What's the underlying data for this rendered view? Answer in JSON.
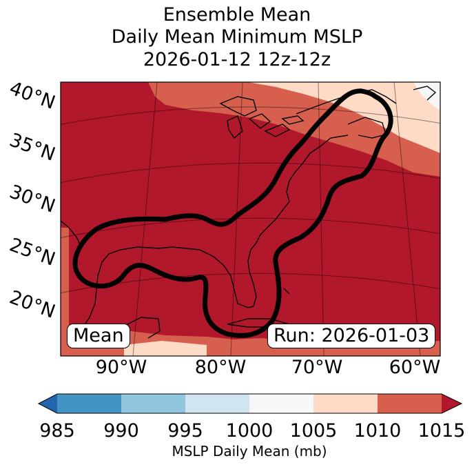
{
  "title": {
    "line1": "Ensemble Mean",
    "line2": "Daily Mean Minimum MSLP",
    "line3": "2026-01-12 12z-12z"
  },
  "map": {
    "lat_labels": [
      "40°N",
      "35°N",
      "30°N",
      "25°N",
      "20°N"
    ],
    "lon_labels": [
      "90°W",
      "80°W",
      "70°W",
      "60°W"
    ],
    "mean_label": "Mean",
    "run_label": "Run: 2026-01-03",
    "colors": {
      "shade_1015_plus": "#b2182b",
      "shade_1010_1015": "#d6604d",
      "shade_1005_1010": "#fddbc7",
      "shade_1000_1005": "#f7f7f7",
      "contour": "#000000"
    }
  },
  "colorbar": {
    "label": "MSLP Daily Mean (mb)",
    "ticks": [
      "985",
      "990",
      "995",
      "1000",
      "1005",
      "1010",
      "1015"
    ],
    "bins": [
      {
        "range": "<985",
        "color": "#2166ac"
      },
      {
        "range": "985-990",
        "color": "#4393c3"
      },
      {
        "range": "990-995",
        "color": "#92c5de"
      },
      {
        "range": "995-1000",
        "color": "#d1e5f0"
      },
      {
        "range": "1000-1005",
        "color": "#f7f7f7"
      },
      {
        "range": "1005-1010",
        "color": "#fddbc7"
      },
      {
        "range": "1010-1015",
        "color": "#d6604d"
      },
      {
        "range": ">1015",
        "color": "#b2182b"
      }
    ],
    "extend": "both"
  }
}
